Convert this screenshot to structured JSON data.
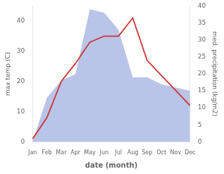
{
  "chart_data": {
    "type": "line",
    "categories": [
      "Jan",
      "Feb",
      "Mar",
      "Apr",
      "May",
      "Jun",
      "Jul",
      "Aug",
      "Sep",
      "Oct",
      "Nov",
      "Dec"
    ],
    "xlabel": "date (month)",
    "ylabel": "max temp (C)",
    "y2label": "med. precipitation (kg/m2)",
    "ylim": [
      0,
      45
    ],
    "yticks": [
      0,
      10,
      20,
      30,
      40
    ],
    "y2lim": [
      0,
      40
    ],
    "y2ticks": [
      0,
      5,
      10,
      15,
      20,
      25,
      30,
      35,
      40
    ],
    "grid": false,
    "series": [
      {
        "type": "area",
        "color": "#b8c4e8",
        "axis": "y2",
        "values": [
          0,
          13,
          18,
          20,
          39,
          38,
          33,
          19,
          19,
          17,
          16,
          15
        ]
      },
      {
        "type": "line",
        "color": "#cc3333",
        "values": [
          1,
          8,
          20,
          26,
          33,
          35,
          35,
          41,
          27,
          22,
          17,
          12
        ]
      }
    ]
  }
}
